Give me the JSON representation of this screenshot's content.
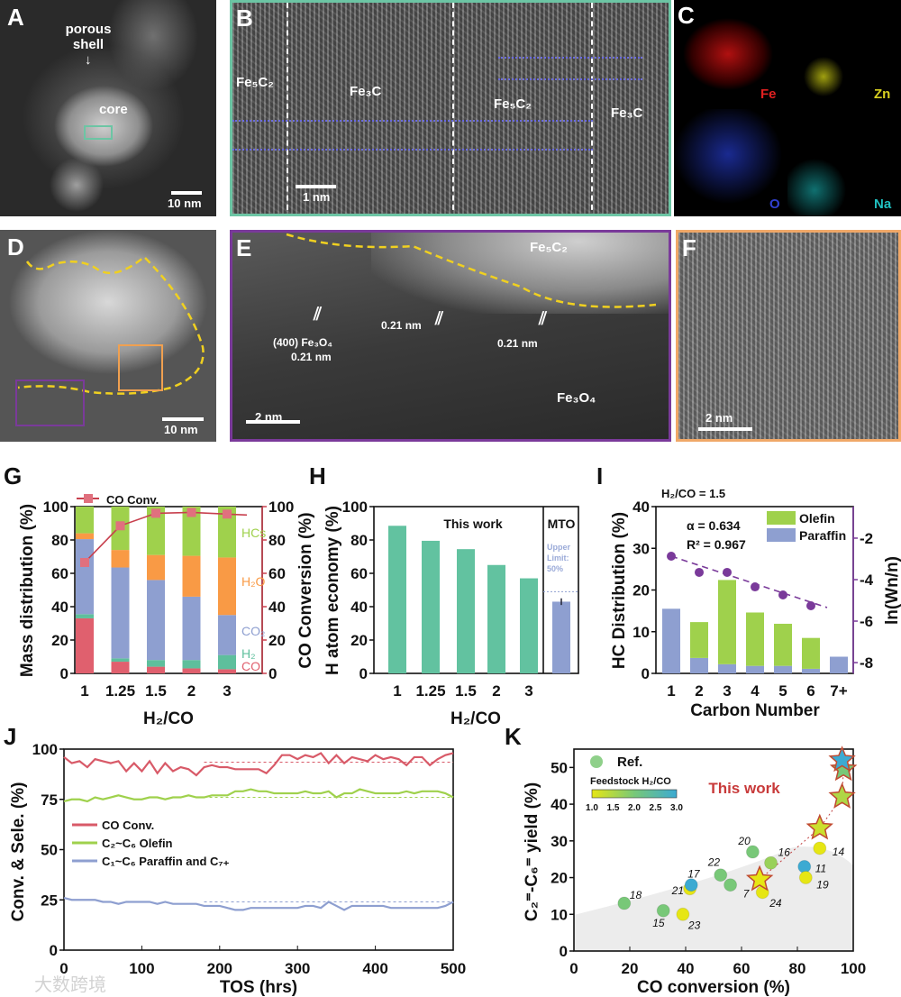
{
  "panels": {
    "A": {
      "letter": "A",
      "porous_shell": "porous shell",
      "core": "core",
      "scale": "10 nm"
    },
    "B": {
      "letter": "B",
      "phases": [
        "Fe₅C₂",
        "Fe₃C",
        "Fe₅C₂",
        "Fe₃C"
      ],
      "scale": "1 nm"
    },
    "C": {
      "letter": "C",
      "maps": [
        {
          "element": "Fe",
          "color": "#e02020"
        },
        {
          "element": "Zn",
          "color": "#d8d020"
        },
        {
          "element": "O",
          "color": "#3040d0"
        },
        {
          "element": "Na",
          "color": "#20c0c0"
        }
      ]
    },
    "D": {
      "letter": "D",
      "scale": "10 nm"
    },
    "E": {
      "letter": "E",
      "top_phase": "Fe₅C₂",
      "plane": "(400) Fe₃O₄",
      "d1": "0.21 nm",
      "d2": "0.21 nm",
      "d3": "0.21 nm",
      "bottom_phase": "Fe₃O₄",
      "scale": "2 nm"
    },
    "F": {
      "letter": "F",
      "scale": "2 nm"
    }
  },
  "colors": {
    "B_border": "#6cc5a4",
    "E_border": "#7a3a9a",
    "F_border": "#f0a868",
    "outline": "#f0d020"
  },
  "watermark": "大数跨境",
  "chart_data": [
    {
      "panel": "G",
      "type": "bar",
      "stacked": true,
      "categories": [
        "1",
        "1.25",
        "1.5",
        "2",
        "3"
      ],
      "xlabel": "H₂/CO",
      "ylabel": "Mass distribution (%)",
      "ylabel_right": "CO Conversion (%)",
      "ylim": [
        0,
        100
      ],
      "yticks": [
        0,
        20,
        40,
        60,
        80,
        100
      ],
      "series": [
        {
          "name": "CO",
          "values": [
            33,
            7,
            4,
            3,
            2.5
          ],
          "color": "#e0606e"
        },
        {
          "name": "H₂",
          "values": [
            2.5,
            2,
            4,
            5,
            8.5
          ],
          "color": "#5ebf9c"
        },
        {
          "name": "CO₂",
          "values": [
            45,
            54.5,
            48,
            38,
            24
          ],
          "color": "#8e9fd0"
        },
        {
          "name": "H₂O",
          "values": [
            3.5,
            10.5,
            15,
            24.5,
            34.5
          ],
          "color": "#f99a45"
        },
        {
          "name": "HCs",
          "values": [
            16,
            26,
            29,
            29.5,
            30.5
          ],
          "color": "#9fd14c"
        }
      ],
      "line": {
        "name": "CO Conv.",
        "values": [
          66.5,
          88.5,
          96,
          96.5,
          95.5
        ],
        "color": "#c8404e"
      }
    },
    {
      "panel": "H",
      "type": "bar",
      "categories": [
        "1",
        "1.25",
        "1.5",
        "2",
        "3"
      ],
      "values": [
        88.5,
        79.5,
        74.5,
        65,
        57
      ],
      "color": "#62c2a0",
      "group_label": "This work",
      "mto": {
        "label": "MTO",
        "category": "2",
        "value": 43,
        "error": 2,
        "color": "#8e9fd0",
        "limit_text": [
          "Upper",
          "Limit:",
          "50%"
        ],
        "limit": 49
      },
      "xlabel": "H₂/CO",
      "ylabel": "H atom economy (%)",
      "ylim": [
        0,
        100
      ],
      "yticks": [
        0,
        20,
        40,
        60,
        80,
        100
      ]
    },
    {
      "panel": "I",
      "type": "bar",
      "stacked": true,
      "title": "H₂/CO = 1.5",
      "categories": [
        "1",
        "2",
        "3",
        "4",
        "5",
        "6",
        "7+"
      ],
      "series": [
        {
          "name": "Paraffin",
          "values": [
            15.5,
            3.7,
            2.2,
            1.8,
            1.8,
            1.1,
            4.0
          ],
          "color": "#8e9fd0"
        },
        {
          "name": "Olefin",
          "values": [
            0,
            8.6,
            20.2,
            12.8,
            10.1,
            7.4,
            0
          ],
          "color": "#9fd14c"
        }
      ],
      "asf": {
        "values": [
          -2.87,
          -3.65,
          -3.65,
          -4.35,
          -4.74,
          -5.26
        ],
        "color": "#7a3a9a",
        "alpha_text": "α = 0.634",
        "r2_text": "R² = 0.967"
      },
      "xlabel": "Carbon Number",
      "ylabel": "HC Distribution (%)",
      "ylabel_right": "ln(Wn/n)",
      "ylim": [
        0,
        40
      ],
      "yticks": [
        0,
        10,
        20,
        30,
        40
      ],
      "ylim_right": [
        -8.52,
        -0.48
      ],
      "yticks_right": [
        -8,
        -6,
        -4,
        -2
      ]
    },
    {
      "panel": "J",
      "type": "line",
      "xlabel": "TOS (hrs)",
      "ylabel": "Conv. & Sele. (%)",
      "xlim": [
        0,
        500
      ],
      "ylim": [
        0,
        100
      ],
      "xticks": [
        0,
        100,
        200,
        300,
        400,
        500
      ],
      "yticks": [
        0,
        25,
        50,
        75,
        100
      ],
      "x_step": 10,
      "series": [
        {
          "name": "CO Conv.",
          "color": "#d85a68",
          "ref": 93.5,
          "values": [
            96,
            93,
            94,
            91,
            95,
            94,
            93,
            94,
            89,
            93,
            89,
            94,
            88,
            93,
            89,
            91,
            90,
            87,
            91,
            92,
            91,
            91,
            90,
            90,
            90,
            90,
            88,
            92,
            97,
            97,
            95,
            97,
            96,
            98,
            93,
            97,
            93,
            96,
            95,
            94,
            97,
            95,
            96,
            95,
            92,
            96,
            96,
            92,
            95,
            97,
            98
          ]
        },
        {
          "name": "C₂~C₆ Olefin",
          "color": "#9fd14c",
          "ref": 76,
          "values": [
            74,
            75,
            75,
            74,
            76,
            75,
            76,
            77,
            76,
            75,
            75,
            76,
            76,
            75,
            76,
            76,
            77,
            76,
            76,
            77,
            77,
            77,
            79,
            79,
            80,
            79,
            79,
            78,
            78,
            78,
            78,
            79,
            78,
            78,
            79,
            76,
            78,
            78,
            80,
            79,
            78,
            78,
            78,
            78,
            79,
            78,
            79,
            79,
            79,
            78,
            76
          ]
        },
        {
          "name": "C₁~C₆ Paraffin and C₇₊",
          "color": "#8e9fd0",
          "ref": 24,
          "values": [
            26,
            25,
            25,
            25,
            25,
            24,
            24,
            23,
            24,
            24,
            24,
            24,
            23,
            24,
            23,
            23,
            23,
            23,
            22,
            22,
            22,
            21,
            20,
            20,
            21,
            21,
            21,
            21,
            21,
            21,
            21,
            22,
            22,
            21,
            24,
            22,
            20,
            22,
            22,
            22,
            22,
            22,
            21,
            21,
            21,
            21,
            21,
            21,
            21,
            22,
            24
          ]
        }
      ]
    },
    {
      "panel": "K",
      "type": "scatter",
      "xlabel": "CO conversion (%)",
      "ylabel": "C₂⁼-C₆⁼ yield (%)",
      "xlim": [
        0,
        100
      ],
      "ylim": [
        0,
        55
      ],
      "xticks": [
        0,
        20,
        40,
        60,
        80,
        100
      ],
      "yticks": [
        0,
        10,
        20,
        30,
        40,
        50
      ],
      "legend": {
        "ref": "Ref.",
        "colorbar_title": "Feedstock H₂/CO",
        "colorbar_ticks": [
          "1.0",
          "1.5",
          "2.0",
          "2.5",
          "3.0"
        ]
      },
      "refs": [
        {
          "label": "18",
          "x": 18,
          "y": 13,
          "h2co": 2.0
        },
        {
          "label": "15",
          "x": 32,
          "y": 11,
          "h2co": 2.0
        },
        {
          "label": "23",
          "x": 39,
          "y": 10,
          "h2co": 1.0
        },
        {
          "label": "21",
          "x": 41.5,
          "y": 17,
          "h2co": 1.0
        },
        {
          "label": "17",
          "x": 42,
          "y": 18,
          "h2co": 3.0
        },
        {
          "label": "22",
          "x": 52.5,
          "y": 20.7,
          "h2co": 2.0
        },
        {
          "label": "7",
          "x": 56,
          "y": 18,
          "h2co": 2.0
        },
        {
          "label": "20",
          "x": 64,
          "y": 27,
          "h2co": 2.0
        },
        {
          "label": "16",
          "x": 70.5,
          "y": 24,
          "h2co": 1.7
        },
        {
          "label": "24",
          "x": 67.5,
          "y": 16,
          "h2co": 1.0
        },
        {
          "label": "14",
          "x": 88,
          "y": 28,
          "h2co": 1.0
        },
        {
          "label": "11",
          "x": 82.5,
          "y": 23,
          "h2co": 3.0
        },
        {
          "label": "19",
          "x": 83,
          "y": 20,
          "h2co": 1.0
        }
      ],
      "this_work": {
        "label": "This work",
        "points": [
          {
            "x": 66.5,
            "y": 19.5,
            "h2co": 1.0
          },
          {
            "x": 88,
            "y": 33.5,
            "h2co": 1.25
          },
          {
            "x": 96,
            "y": 42,
            "h2co": 1.5
          },
          {
            "x": 96.5,
            "y": 49.5,
            "h2co": 2.0
          },
          {
            "x": 96,
            "y": 52,
            "h2co": 3.0
          }
        ]
      }
    }
  ]
}
